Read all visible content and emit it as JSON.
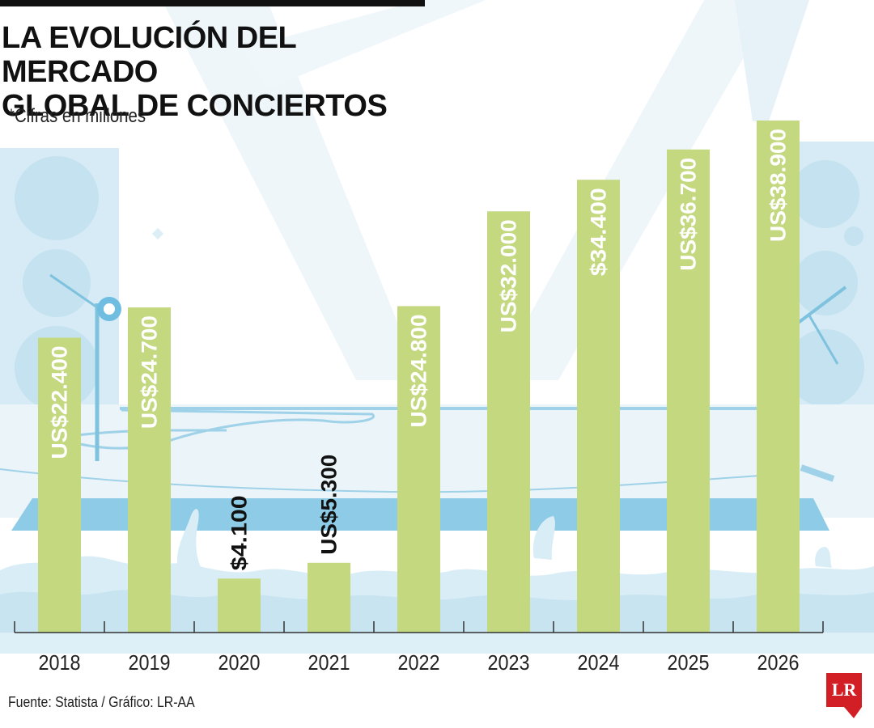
{
  "header": {
    "title_line1": "LA EVOLUCIÓN DEL MERCADO",
    "title_line2": "GLOBAL DE CONCIERTOS",
    "subtitle": "*Cifras en millones"
  },
  "footer": {
    "source": "Fuente: Statista / Gráfico: LR-AA",
    "logo_text": "LR"
  },
  "colors": {
    "bar": "#c4d880",
    "text_on_bar": "#ffffff",
    "text_above_bar": "#111111",
    "axis": "#333333",
    "background_light_blue": "#d6ebf5",
    "background_blue": "#8dcbe6",
    "logo_red": "#d21f26"
  },
  "chart_data": {
    "type": "bar",
    "title": "LA EVOLUCIÓN DEL MERCADO GLOBAL DE CONCIERTOS",
    "subtitle": "*Cifras en millones",
    "xlabel": "",
    "ylabel": "",
    "categories": [
      "2018",
      "2019",
      "2020",
      "2021",
      "2022",
      "2023",
      "2024",
      "2025",
      "2026"
    ],
    "values": [
      22400,
      24700,
      4100,
      5300,
      24800,
      32000,
      34400,
      36700,
      38900
    ],
    "data_labels": [
      "US$22.400",
      "US$24.700",
      "$4.100",
      "US$5.300",
      "US$24.800",
      "US$32.000",
      "$34.400",
      "US$36.700",
      "US$38.900"
    ],
    "ylim": [
      0,
      38900
    ],
    "grid": false,
    "legend": "none"
  }
}
